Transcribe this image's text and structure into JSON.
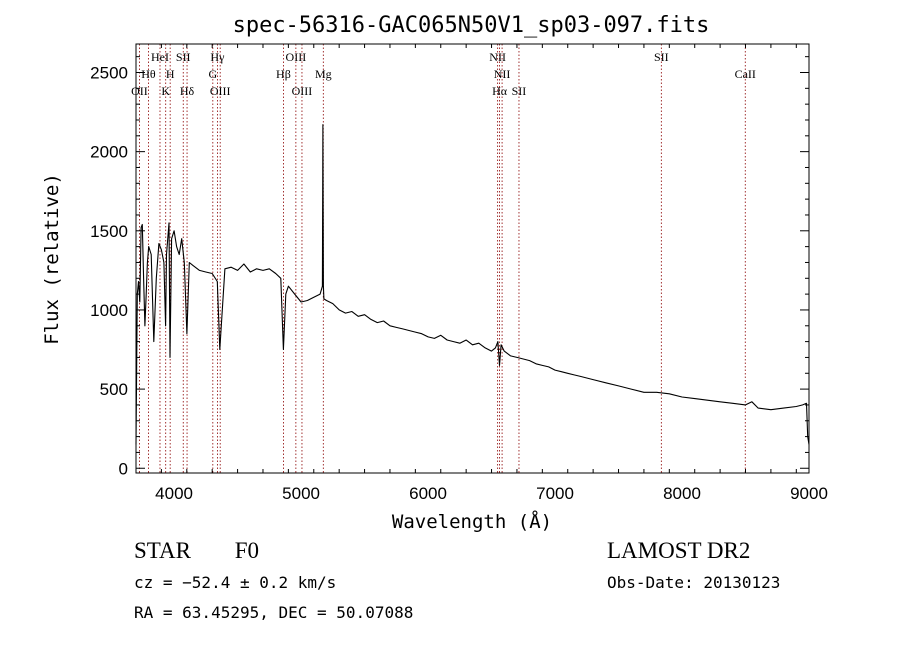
{
  "footer": {
    "class_label": "STAR",
    "subclass_label": "F0",
    "survey_label": "LAMOST DR2",
    "cz_text": "cz = −52.4 ± 0.2 km/s",
    "obs_date_text": "Obs-Date: 20130123",
    "coords_text": "RA =  63.45295, DEC =  50.07088"
  },
  "chart_data": {
    "type": "line",
    "title": "spec-56316-GAC065N50V1_sp03-097.fits",
    "xlabel": "Wavelength (Å)",
    "ylabel": "Flux (relative)",
    "xlim": [
      3700,
      9000
    ],
    "ylim": [
      -30,
      2680
    ],
    "x_ticks": [
      4000,
      5000,
      6000,
      7000,
      8000,
      9000
    ],
    "y_ticks": [
      0,
      500,
      1000,
      1500,
      2000,
      2500
    ],
    "line_color": "#000000",
    "marker_color": "#8b0000",
    "line_markers": [
      {
        "x": 3727,
        "label": "OII",
        "row": 3
      },
      {
        "x": 3798,
        "label": "Hθ",
        "row": 2
      },
      {
        "x": 3889,
        "label": "HeI",
        "row": 1
      },
      {
        "x": 3934,
        "label": "K",
        "row": 3
      },
      {
        "x": 3969,
        "label": "H",
        "row": 2
      },
      {
        "x": 4072,
        "label": "SII",
        "row": 1
      },
      {
        "x": 4102,
        "label": "Hδ",
        "row": 3
      },
      {
        "x": 4305,
        "label": "G",
        "row": 2
      },
      {
        "x": 4341,
        "label": "Hγ",
        "row": 1
      },
      {
        "x": 4363,
        "label": "OIII",
        "row": 3
      },
      {
        "x": 4861,
        "label": "Hβ",
        "row": 2
      },
      {
        "x": 4959,
        "label": "OIII",
        "row": 1
      },
      {
        "x": 5007,
        "label": "OIII",
        "row": 3
      },
      {
        "x": 5175,
        "label": "Mg",
        "row": 2
      },
      {
        "x": 6548,
        "label": "NII",
        "row": 1
      },
      {
        "x": 6563,
        "label": "Hα",
        "row": 3
      },
      {
        "x": 6583,
        "label": "NII",
        "row": 2
      },
      {
        "x": 6716,
        "label": "SII",
        "row": 3
      },
      {
        "x": 7837,
        "label": "SII",
        "row": 1
      },
      {
        "x": 8498,
        "label": "CaII",
        "row": 2
      }
    ],
    "spectrum": {
      "x": [
        3700,
        3710,
        3720,
        3730,
        3740,
        3750,
        3760,
        3770,
        3780,
        3790,
        3800,
        3820,
        3840,
        3860,
        3880,
        3900,
        3920,
        3933,
        3940,
        3960,
        3968,
        3980,
        4000,
        4020,
        4040,
        4060,
        4080,
        4101,
        4120,
        4150,
        4200,
        4250,
        4300,
        4340,
        4360,
        4400,
        4450,
        4500,
        4550,
        4600,
        4650,
        4700,
        4750,
        4800,
        4840,
        4861,
        4880,
        4900,
        4950,
        5000,
        5050,
        5100,
        5150,
        5168,
        5172,
        5176,
        5180,
        5200,
        5250,
        5300,
        5350,
        5400,
        5450,
        5500,
        5550,
        5600,
        5650,
        5700,
        5750,
        5800,
        5850,
        5900,
        5950,
        6000,
        6050,
        6100,
        6150,
        6200,
        6250,
        6300,
        6350,
        6400,
        6450,
        6500,
        6530,
        6550,
        6563,
        6575,
        6600,
        6650,
        6700,
        6750,
        6800,
        6850,
        6900,
        6950,
        7000,
        7050,
        7100,
        7150,
        7200,
        7300,
        7400,
        7500,
        7600,
        7700,
        7800,
        7900,
        8000,
        8100,
        8200,
        8300,
        8400,
        8500,
        8550,
        8600,
        8700,
        8800,
        8900,
        8950,
        8980,
        8990,
        9000
      ],
      "y": [
        150,
        1100,
        1180,
        1050,
        1520,
        1540,
        1200,
        900,
        1100,
        1300,
        1400,
        1350,
        800,
        1200,
        1420,
        1380,
        1300,
        900,
        1350,
        1550,
        700,
        1450,
        1500,
        1400,
        1350,
        1450,
        1300,
        850,
        1300,
        1280,
        1250,
        1240,
        1230,
        1180,
        750,
        1260,
        1270,
        1250,
        1290,
        1240,
        1260,
        1250,
        1260,
        1230,
        1200,
        750,
        1100,
        1150,
        1100,
        1050,
        1060,
        1080,
        1100,
        1150,
        2170,
        1150,
        1070,
        1060,
        1040,
        1000,
        980,
        990,
        960,
        970,
        940,
        920,
        930,
        900,
        890,
        880,
        870,
        860,
        850,
        830,
        820,
        840,
        810,
        800,
        790,
        810,
        780,
        790,
        760,
        740,
        760,
        800,
        650,
        780,
        740,
        710,
        700,
        690,
        680,
        660,
        650,
        640,
        620,
        610,
        600,
        590,
        580,
        560,
        540,
        520,
        500,
        480,
        480,
        470,
        450,
        440,
        430,
        420,
        410,
        400,
        420,
        380,
        370,
        380,
        390,
        400,
        410,
        200,
        150
      ]
    }
  }
}
